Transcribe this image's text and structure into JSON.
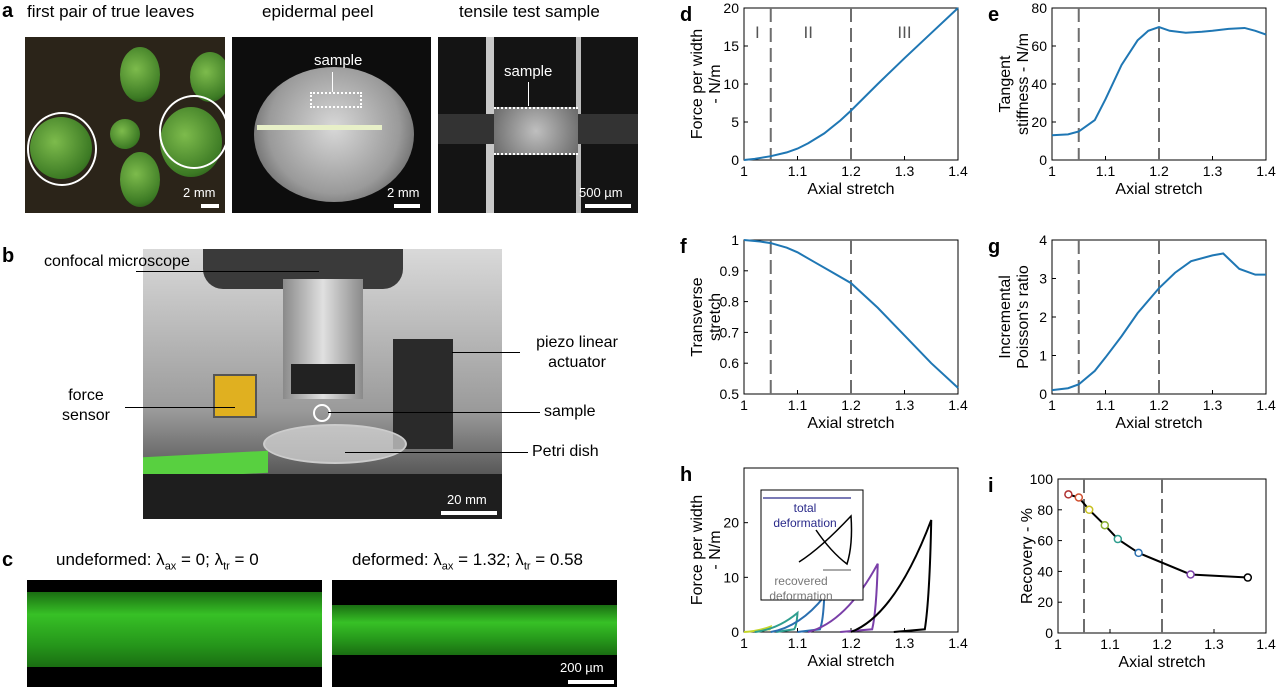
{
  "panel_a": {
    "letter": "a",
    "photos": [
      {
        "caption": "first pair of true leaves",
        "scale": "2 mm"
      },
      {
        "caption": "epidermal peel",
        "scale": "2 mm",
        "label": "sample"
      },
      {
        "caption": "tensile test sample",
        "scale": "500 µm",
        "label": "sample"
      }
    ]
  },
  "panel_b": {
    "letter": "b",
    "labels": {
      "confocal": "confocal microscope",
      "force": "force sensor",
      "piezo": "piezo linear actuator",
      "sample": "sample",
      "petri": "Petri dish"
    },
    "scale": "20 mm"
  },
  "panel_c": {
    "letter": "c",
    "undeformed": {
      "prefix": "undeformed: λ",
      "sub1": "ax",
      "mid": " = 0; λ",
      "sub2": "tr",
      "suffix": " = 0"
    },
    "deformed": {
      "prefix": "deformed: λ",
      "sub1": "ax",
      "mid": " = 1.32; λ",
      "sub2": "tr",
      "suffix": " = 0.58"
    },
    "scale": "200 µm"
  },
  "colors": {
    "curve": "#1f77b4",
    "dashed": "#6e6e6e",
    "fluor": "#3dd62a"
  },
  "chart_data": [
    {
      "id": "d",
      "type": "line",
      "xlabel": "Axial stretch",
      "ylabel": [
        "Force per width",
        "- N/m"
      ],
      "xlim": [
        1,
        1.4
      ],
      "ylim": [
        0,
        20
      ],
      "xticks": [
        1,
        1.1,
        1.2,
        1.3,
        1.4
      ],
      "yticks": [
        0,
        5,
        10,
        15,
        20
      ],
      "vlines": [
        1.05,
        1.2
      ],
      "regions": [
        {
          "label": "I",
          "x": 1.025
        },
        {
          "label": "II",
          "x": 1.12
        },
        {
          "label": "III",
          "x": 1.3
        }
      ],
      "series": [
        {
          "x": [
            1,
            1.02,
            1.05,
            1.08,
            1.1,
            1.12,
            1.15,
            1.18,
            1.2,
            1.25,
            1.3,
            1.35,
            1.4
          ],
          "y": [
            0,
            0.15,
            0.5,
            1.0,
            1.5,
            2.2,
            3.5,
            5.2,
            6.5,
            10.0,
            13.4,
            16.7,
            20.0
          ]
        }
      ]
    },
    {
      "id": "e",
      "type": "line",
      "xlabel": "Axial stretch",
      "ylabel": [
        "Tangent",
        "stiffness - N/m"
      ],
      "xlim": [
        1,
        1.4
      ],
      "ylim": [
        0,
        80
      ],
      "xticks": [
        1,
        1.1,
        1.2,
        1.3,
        1.4
      ],
      "yticks": [
        0,
        20,
        40,
        60,
        80
      ],
      "vlines": [
        1.05,
        1.2
      ],
      "series": [
        {
          "x": [
            1,
            1.03,
            1.05,
            1.08,
            1.1,
            1.13,
            1.16,
            1.18,
            1.2,
            1.22,
            1.25,
            1.28,
            1.3,
            1.33,
            1.36,
            1.38,
            1.4
          ],
          "y": [
            13,
            13.5,
            15,
            21,
            32,
            50,
            63,
            68,
            70,
            68,
            67,
            67.5,
            68,
            69,
            69.5,
            68,
            66
          ]
        }
      ]
    },
    {
      "id": "f",
      "type": "line",
      "xlabel": "Axial stretch",
      "ylabel": [
        "Transverse",
        "stretch"
      ],
      "xlim": [
        1,
        1.4
      ],
      "ylim": [
        0.5,
        1
      ],
      "xticks": [
        1,
        1.1,
        1.2,
        1.3,
        1.4
      ],
      "yticks": [
        0.5,
        0.6,
        0.7,
        0.8,
        0.9,
        1
      ],
      "vlines": [
        1.05,
        1.2
      ],
      "series": [
        {
          "x": [
            1,
            1.03,
            1.05,
            1.08,
            1.1,
            1.13,
            1.16,
            1.2,
            1.25,
            1.3,
            1.35,
            1.4
          ],
          "y": [
            1,
            0.995,
            0.99,
            0.975,
            0.96,
            0.93,
            0.9,
            0.86,
            0.78,
            0.69,
            0.6,
            0.52
          ]
        }
      ]
    },
    {
      "id": "g",
      "type": "line",
      "xlabel": "Axial stretch",
      "ylabel": [
        "Incremental",
        "Poisson's ratio"
      ],
      "xlim": [
        1,
        1.4
      ],
      "ylim": [
        0,
        4
      ],
      "xticks": [
        1,
        1.1,
        1.2,
        1.3,
        1.4
      ],
      "yticks": [
        0,
        1,
        2,
        3,
        4
      ],
      "vlines": [
        1.05,
        1.2
      ],
      "series": [
        {
          "x": [
            1,
            1.03,
            1.05,
            1.08,
            1.1,
            1.13,
            1.16,
            1.2,
            1.23,
            1.26,
            1.3,
            1.32,
            1.35,
            1.38,
            1.4
          ],
          "y": [
            0.1,
            0.15,
            0.25,
            0.6,
            0.95,
            1.5,
            2.1,
            2.75,
            3.15,
            3.45,
            3.6,
            3.65,
            3.25,
            3.1,
            3.1
          ]
        }
      ]
    },
    {
      "id": "h",
      "type": "line",
      "xlabel": "Axial stretch",
      "ylabel": [
        "Force per width",
        "- N/m"
      ],
      "xlim": [
        1,
        1.4
      ],
      "ylim": [
        0,
        30
      ],
      "xticks": [
        1,
        1.1,
        1.2,
        1.3,
        1.4
      ],
      "yticks": [
        0,
        10,
        20
      ],
      "inset": {
        "total": "total deformation",
        "recovered": "recovered deformation"
      },
      "loops": [
        {
          "color": "#c5d62a",
          "x0": 1.0,
          "x1": 1.05,
          "peak": 1.0,
          "xr": 1.02
        },
        {
          "color": "#2f9e8f",
          "x0": 1.02,
          "x1": 1.1,
          "peak": 3.5,
          "xr": 1.06
        },
        {
          "color": "#2a6fb0",
          "x0": 1.05,
          "x1": 1.15,
          "peak": 6.5,
          "xr": 1.1
        },
        {
          "color": "#7a3fa8",
          "x0": 1.12,
          "x1": 1.25,
          "peak": 12.5,
          "xr": 1.18
        },
        {
          "color": "#000000",
          "x0": 1.2,
          "x1": 1.35,
          "peak": 20.5,
          "xr": 1.28
        }
      ]
    },
    {
      "id": "i",
      "type": "line",
      "xlabel": "Axial stretch",
      "ylabel": [
        "Recovery - %"
      ],
      "xlim": [
        1,
        1.4
      ],
      "ylim": [
        0,
        100
      ],
      "xticks": [
        1,
        1.1,
        1.2,
        1.3,
        1.4
      ],
      "yticks": [
        0,
        20,
        40,
        60,
        80,
        100
      ],
      "vlines": [
        1.05,
        1.2
      ],
      "points": [
        {
          "x": 1.02,
          "y": 90,
          "color": "#b03030"
        },
        {
          "x": 1.04,
          "y": 88,
          "color": "#d05030"
        },
        {
          "x": 1.06,
          "y": 80,
          "color": "#c8c020"
        },
        {
          "x": 1.09,
          "y": 70,
          "color": "#8ab030"
        },
        {
          "x": 1.115,
          "y": 61,
          "color": "#2f9e8f"
        },
        {
          "x": 1.155,
          "y": 52,
          "color": "#2a6fb0"
        },
        {
          "x": 1.255,
          "y": 38,
          "color": "#7a3fa8"
        },
        {
          "x": 1.365,
          "y": 36,
          "color": "#000000"
        }
      ]
    }
  ]
}
